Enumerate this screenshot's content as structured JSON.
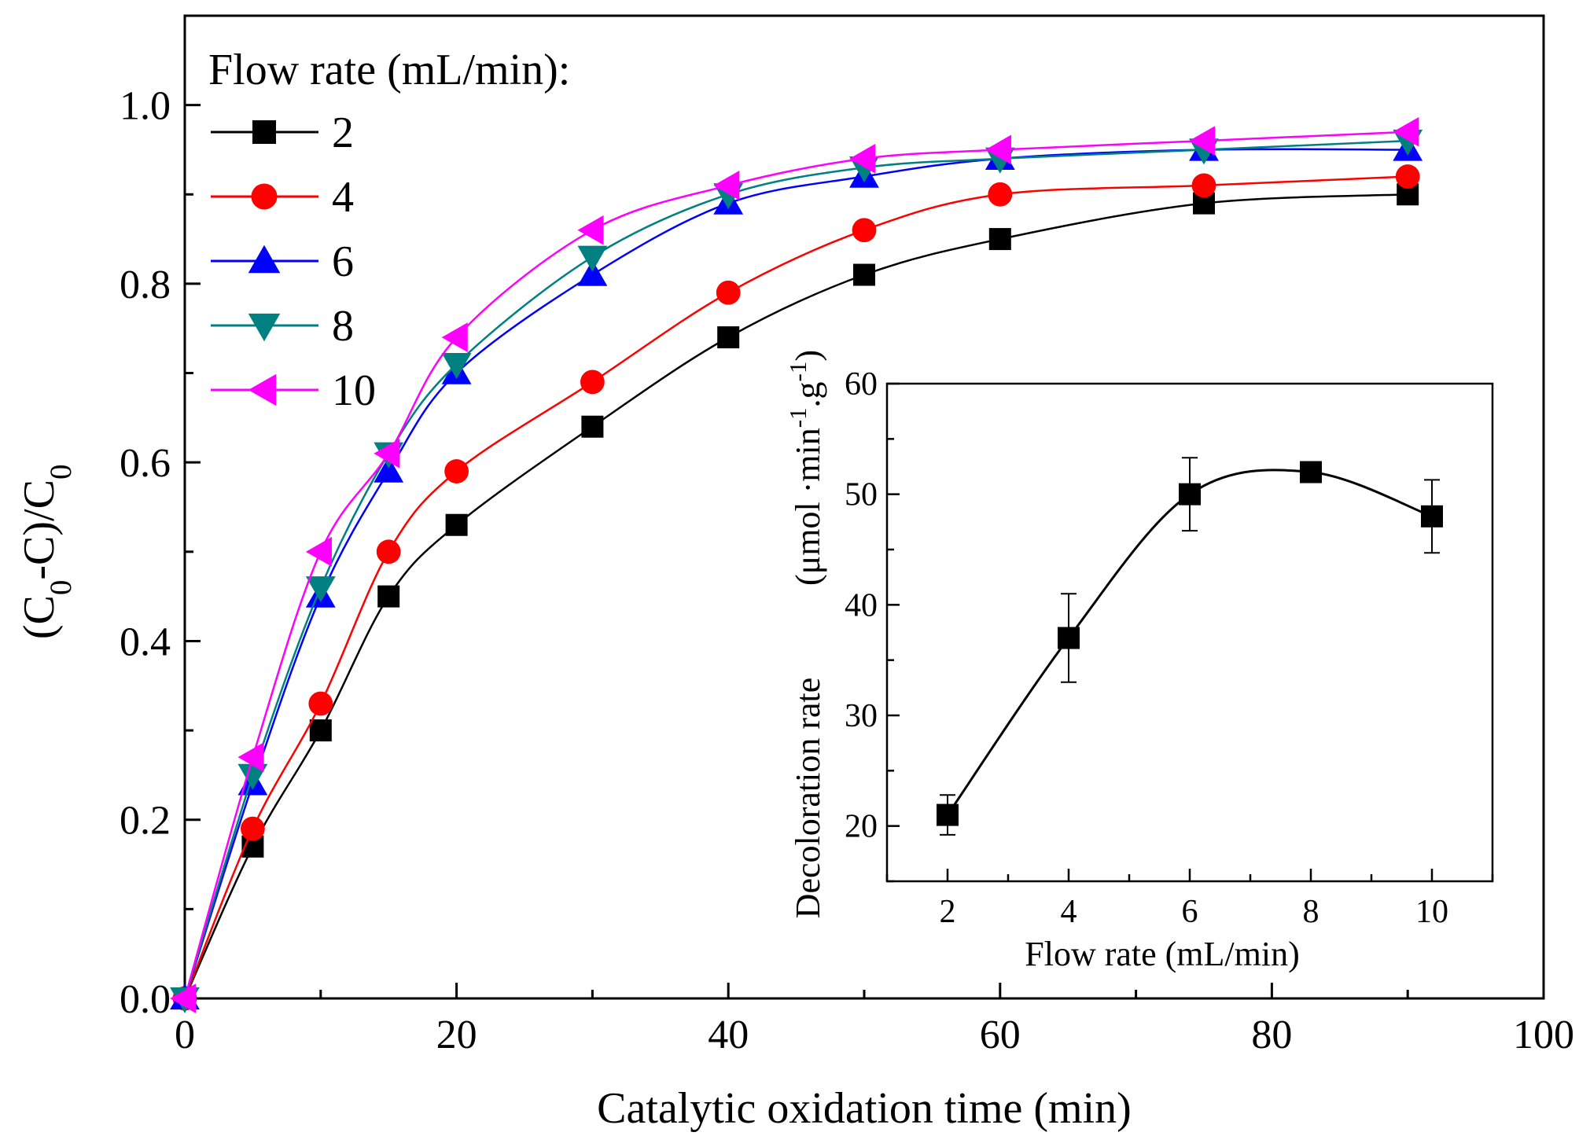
{
  "chart_data": [
    {
      "type": "line",
      "xlabel": "Catalytic oxidation time (min)",
      "ylabel": {
        "parts": [
          [
            "(C",
            ""
          ],
          [
            "0",
            "sub"
          ],
          [
            "-C)/C",
            ""
          ],
          [
            "0",
            "sub"
          ]
        ]
      },
      "xlim": [
        0,
        100
      ],
      "ylim": [
        0.0,
        1.1
      ],
      "xticks": [
        "0",
        "20",
        "40",
        "60",
        "80",
        "100"
      ],
      "yticks": [
        "0.0",
        "0.2",
        "0.4",
        "0.6",
        "0.8",
        "1.0"
      ],
      "legend_title": "Flow rate (mL/min):",
      "legend_position": "top-left",
      "x": [
        0,
        5,
        10,
        15,
        20,
        30,
        40,
        50,
        60,
        75,
        90
      ],
      "series": [
        {
          "name": "2",
          "color": "#000000",
          "marker": "square",
          "values": [
            0.0,
            0.17,
            0.3,
            0.45,
            0.53,
            0.64,
            0.74,
            0.81,
            0.85,
            0.89,
            0.9
          ]
        },
        {
          "name": "4",
          "color": "#ff0000",
          "marker": "circle",
          "values": [
            0.0,
            0.19,
            0.33,
            0.5,
            0.59,
            0.69,
            0.79,
            0.86,
            0.9,
            0.91,
            0.92
          ]
        },
        {
          "name": "6",
          "color": "#0000ff",
          "marker": "triangle-up",
          "values": [
            0.0,
            0.24,
            0.45,
            0.59,
            0.7,
            0.81,
            0.89,
            0.92,
            0.94,
            0.95,
            0.95
          ]
        },
        {
          "name": "8",
          "color": "#008080",
          "marker": "triangle-down",
          "values": [
            0.0,
            0.25,
            0.46,
            0.61,
            0.71,
            0.83,
            0.9,
            0.93,
            0.94,
            0.95,
            0.96
          ]
        },
        {
          "name": "10",
          "color": "#ff00ff",
          "marker": "triangle-left",
          "values": [
            0.0,
            0.27,
            0.5,
            0.61,
            0.74,
            0.86,
            0.91,
            0.94,
            0.95,
            0.96,
            0.97
          ]
        }
      ]
    },
    {
      "type": "line",
      "xlabel": "Flow rate (mL/min)",
      "ylabel_main": "Decoloration rate",
      "ylabel_unit": {
        "parts": [
          [
            "(μmol ·min",
            ""
          ],
          [
            "-1",
            "sup"
          ],
          [
            ".g",
            ""
          ],
          [
            "-1",
            "sup"
          ],
          [
            ")",
            ""
          ]
        ]
      },
      "xlim": [
        1.0,
        11.0
      ],
      "ylim": [
        15,
        60
      ],
      "xticks": [
        "2",
        "4",
        "6",
        "8",
        "10"
      ],
      "yticks": [
        "20",
        "30",
        "40",
        "50",
        "60"
      ],
      "series": [
        {
          "color": "#000000",
          "marker": "square",
          "x": [
            2,
            4,
            6,
            8,
            10
          ],
          "values": [
            21,
            37,
            50,
            52,
            48
          ],
          "error": [
            1.8,
            4.0,
            3.3,
            0.0,
            3.3
          ]
        }
      ]
    }
  ]
}
